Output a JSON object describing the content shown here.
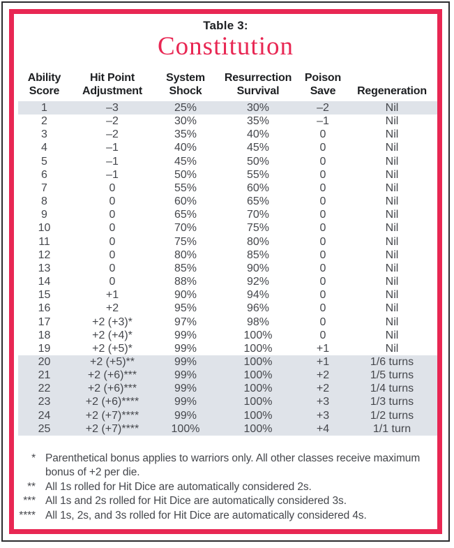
{
  "header": {
    "table_label": "Table 3:",
    "title": "Constitution"
  },
  "columns": [
    {
      "key": "ability-score",
      "line1": "Ability",
      "line2": "Score"
    },
    {
      "key": "hit-point-adjustment",
      "line1": "Hit Point",
      "line2": "Adjustment"
    },
    {
      "key": "system-shock",
      "line1": "System",
      "line2": "Shock"
    },
    {
      "key": "resurrection-survival",
      "line1": "Resurrection",
      "line2": "Survival"
    },
    {
      "key": "poison-save",
      "line1": "Poison",
      "line2": "Save"
    },
    {
      "key": "regeneration",
      "line1": "",
      "line2": "Regeneration"
    }
  ],
  "rows": [
    {
      "shaded": true,
      "cells": [
        "1",
        "–3",
        "25%",
        "30%",
        "–2",
        "Nil"
      ]
    },
    {
      "shaded": false,
      "cells": [
        "2",
        "–2",
        "30%",
        "35%",
        "–1",
        "Nil"
      ]
    },
    {
      "shaded": false,
      "cells": [
        "3",
        "–2",
        "35%",
        "40%",
        "0",
        "Nil"
      ]
    },
    {
      "shaded": false,
      "cells": [
        "4",
        "–1",
        "40%",
        "45%",
        "0",
        "Nil"
      ]
    },
    {
      "shaded": false,
      "cells": [
        "5",
        "–1",
        "45%",
        "50%",
        "0",
        "Nil"
      ]
    },
    {
      "shaded": false,
      "cells": [
        "6",
        "–1",
        "50%",
        "55%",
        "0",
        "Nil"
      ]
    },
    {
      "shaded": false,
      "cells": [
        "7",
        "0",
        "55%",
        "60%",
        "0",
        "Nil"
      ]
    },
    {
      "shaded": false,
      "cells": [
        "8",
        "0",
        "60%",
        "65%",
        "0",
        "Nil"
      ]
    },
    {
      "shaded": false,
      "cells": [
        "9",
        "0",
        "65%",
        "70%",
        "0",
        "Nil"
      ]
    },
    {
      "shaded": false,
      "cells": [
        "10",
        "0",
        "70%",
        "75%",
        "0",
        "Nil"
      ]
    },
    {
      "shaded": false,
      "cells": [
        "11",
        "0",
        "75%",
        "80%",
        "0",
        "Nil"
      ]
    },
    {
      "shaded": false,
      "cells": [
        "12",
        "0",
        "80%",
        "85%",
        "0",
        "Nil"
      ]
    },
    {
      "shaded": false,
      "cells": [
        "13",
        "0",
        "85%",
        "90%",
        "0",
        "Nil"
      ]
    },
    {
      "shaded": false,
      "cells": [
        "14",
        "0",
        "88%",
        "92%",
        "0",
        "Nil"
      ]
    },
    {
      "shaded": false,
      "cells": [
        "15",
        "+1",
        "90%",
        "94%",
        "0",
        "Nil"
      ]
    },
    {
      "shaded": false,
      "cells": [
        "16",
        "+2",
        "95%",
        "96%",
        "0",
        "Nil"
      ]
    },
    {
      "shaded": false,
      "cells": [
        "17",
        "+2 (+3)*",
        "97%",
        "98%",
        "0",
        "Nil"
      ]
    },
    {
      "shaded": false,
      "cells": [
        "18",
        "+2 (+4)*",
        "99%",
        "100%",
        "0",
        "Nil"
      ]
    },
    {
      "shaded": false,
      "cells": [
        "19",
        "+2 (+5)*",
        "99%",
        "100%",
        "+1",
        "Nil"
      ]
    },
    {
      "shaded": true,
      "cells": [
        "20",
        "+2 (+5)**",
        "99%",
        "100%",
        "+1",
        "1/6 turns"
      ]
    },
    {
      "shaded": true,
      "cells": [
        "21",
        "+2 (+6)***",
        "99%",
        "100%",
        "+2",
        "1/5 turns"
      ]
    },
    {
      "shaded": true,
      "cells": [
        "22",
        "+2 (+6)***",
        "99%",
        "100%",
        "+2",
        "1/4 turns"
      ]
    },
    {
      "shaded": true,
      "cells": [
        "23",
        "+2 (+6)****",
        "99%",
        "100%",
        "+3",
        "1/3 turns"
      ]
    },
    {
      "shaded": true,
      "cells": [
        "24",
        "+2 (+7)****",
        "99%",
        "100%",
        "+3",
        "1/2 turns"
      ]
    },
    {
      "shaded": true,
      "cells": [
        "25",
        "+2 (+7)****",
        "100%",
        "100%",
        "+4",
        "1/1 turn"
      ]
    }
  ],
  "footnotes": [
    {
      "marker": "*",
      "text": "Parenthetical bonus applies to warriors only. All other classes receive maximum bonus of +2 per die."
    },
    {
      "marker": "**",
      "text": "All 1s rolled for Hit Dice are automatically considered 2s."
    },
    {
      "marker": "***",
      "text": "All 1s and 2s rolled for Hit Dice are automatically considered 3s."
    },
    {
      "marker": "****",
      "text": "All 1s, 2s, and 3s rolled for Hit Dice are automatically considered 4s."
    }
  ],
  "colors": {
    "accent_red": "#e82753",
    "row_shade": "#dfe3e9",
    "header_text": "#1d1f22",
    "body_text": "#45474c"
  }
}
